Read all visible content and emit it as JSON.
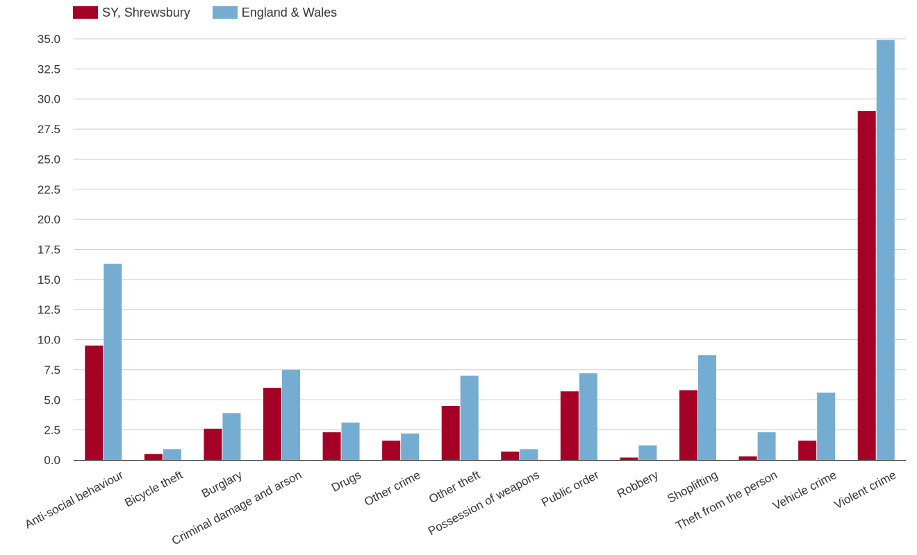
{
  "chart_data": {
    "type": "bar",
    "title": "",
    "xlabel": "",
    "ylabel": "",
    "ylim": [
      0,
      35
    ],
    "yticks": [
      "0.0",
      "2.5",
      "5.0",
      "7.5",
      "10.0",
      "12.5",
      "15.0",
      "17.5",
      "20.0",
      "22.5",
      "25.0",
      "27.5",
      "30.0",
      "32.5",
      "35.0"
    ],
    "grid": true,
    "legend_position": "top-left",
    "categories": [
      "Anti-social behaviour",
      "Bicycle theft",
      "Burglary",
      "Criminal damage and arson",
      "Drugs",
      "Other crime",
      "Other theft",
      "Possession of weapons",
      "Public order",
      "Robbery",
      "Shoplifting",
      "Theft from the person",
      "Vehicle crime",
      "Violent crime"
    ],
    "series": [
      {
        "name": "SY, Shrewsbury",
        "color": "#a50026",
        "values": [
          9.5,
          0.5,
          2.6,
          6.0,
          2.3,
          1.6,
          4.5,
          0.7,
          5.7,
          0.2,
          5.8,
          0.3,
          1.6,
          29.0
        ]
      },
      {
        "name": "England & Wales",
        "color": "#74add1",
        "values": [
          16.3,
          0.9,
          3.9,
          7.5,
          3.1,
          2.2,
          7.0,
          0.9,
          7.2,
          1.2,
          8.7,
          2.3,
          5.6,
          34.9
        ]
      }
    ]
  }
}
